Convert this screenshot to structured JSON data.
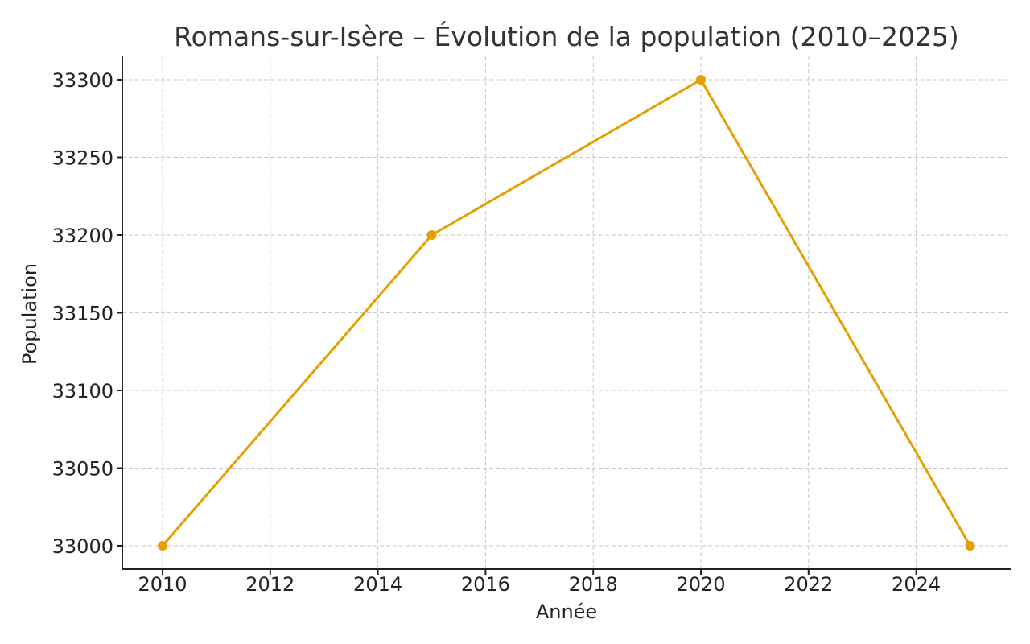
{
  "chart_data": {
    "type": "line",
    "title": "Romans-sur-Isère – Évolution de la population (2010–2025)",
    "xlabel": "Année",
    "ylabel": "Population",
    "x": [
      2010,
      2015,
      2020,
      2025
    ],
    "series": [
      {
        "name": "Population",
        "values": [
          33000,
          33200,
          33300,
          33000
        ],
        "color": "#E69F00"
      }
    ],
    "xticks": [
      2010,
      2012,
      2014,
      2016,
      2018,
      2020,
      2022,
      2024
    ],
    "yticks": [
      33000,
      33050,
      33100,
      33150,
      33200,
      33250,
      33300
    ],
    "xlim": [
      2009.25,
      2025.75
    ],
    "ylim": [
      32985,
      33315
    ],
    "grid": true,
    "legend": null
  }
}
